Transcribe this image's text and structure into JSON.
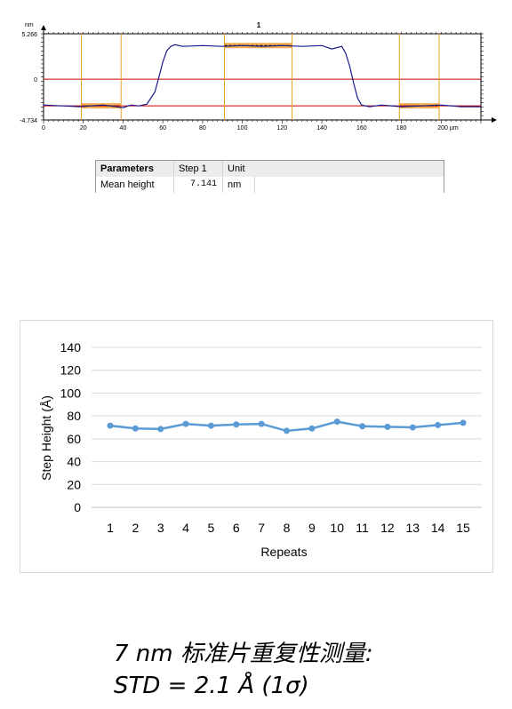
{
  "profile": {
    "title": "1",
    "unit_label": "nm",
    "y_tick_labels": [
      "5.266",
      "0",
      "-4.734"
    ],
    "x_tick_labels": [
      "0",
      "20",
      "40",
      "60",
      "80",
      "100",
      "120",
      "140",
      "160",
      "180",
      "200 µm"
    ],
    "colors": {
      "line": "#1a1a8c",
      "reference": "#cc0000",
      "marker": "#e8a020",
      "region": "#f0a030"
    }
  },
  "params_table": {
    "headers": [
      "Parameters",
      "Step 1",
      "Unit"
    ],
    "row": [
      "Mean height",
      "7.141",
      "nm"
    ]
  },
  "caption": {
    "line1": "7 nm 标准片重复性测量:",
    "line2": "STD = 2.1 Å (1σ)"
  },
  "chart_data": [
    {
      "type": "line",
      "title": "1",
      "ylabel": "nm",
      "x_unit": "µm",
      "ylim": [
        -4.734,
        5.266
      ],
      "xlim": [
        0,
        220
      ],
      "x": [
        0,
        10,
        18,
        30,
        40,
        44,
        48,
        52,
        56,
        58,
        60,
        62,
        64,
        66,
        70,
        80,
        90,
        100,
        110,
        120,
        130,
        140,
        145,
        150,
        152,
        154,
        156,
        158,
        160,
        162,
        164,
        170,
        180,
        190,
        200,
        210,
        220
      ],
      "y": [
        -3.0,
        -3.1,
        -3.2,
        -3.0,
        -3.3,
        -3.0,
        -3.1,
        -2.9,
        -1.5,
        0.2,
        2.0,
        3.3,
        3.8,
        4.0,
        3.8,
        3.9,
        3.8,
        3.9,
        3.8,
        3.9,
        3.8,
        3.9,
        3.5,
        3.8,
        3.0,
        1.5,
        -0.5,
        -2.2,
        -3.0,
        -3.1,
        -3.2,
        -3.0,
        -3.2,
        -3.1,
        -3.0,
        -3.2,
        -3.2
      ],
      "reference_levels": [
        0,
        -3.1
      ],
      "marker_lines_x": [
        19,
        39,
        91,
        125,
        179,
        199
      ],
      "regions": [
        {
          "x": [
            19,
            39
          ],
          "level": -3.1
        },
        {
          "x": [
            91,
            125
          ],
          "level": 3.9
        },
        {
          "x": [
            179,
            199
          ],
          "level": -3.1
        }
      ]
    },
    {
      "type": "line",
      "title": "",
      "xlabel": "Repeats",
      "ylabel": "Step Height (Å)",
      "ylim": [
        0,
        140
      ],
      "yticks": [
        0,
        20,
        40,
        60,
        80,
        100,
        120,
        140
      ],
      "grid": true,
      "categories": [
        "1",
        "2",
        "3",
        "4",
        "5",
        "6",
        "7",
        "8",
        "9",
        "10",
        "11",
        "12",
        "13",
        "14",
        "15"
      ],
      "values": [
        71.5,
        69,
        68.5,
        73,
        71.5,
        72.5,
        73,
        67,
        69,
        75,
        71,
        70.5,
        70,
        72,
        74
      ],
      "color": "#5b9bd5"
    }
  ]
}
